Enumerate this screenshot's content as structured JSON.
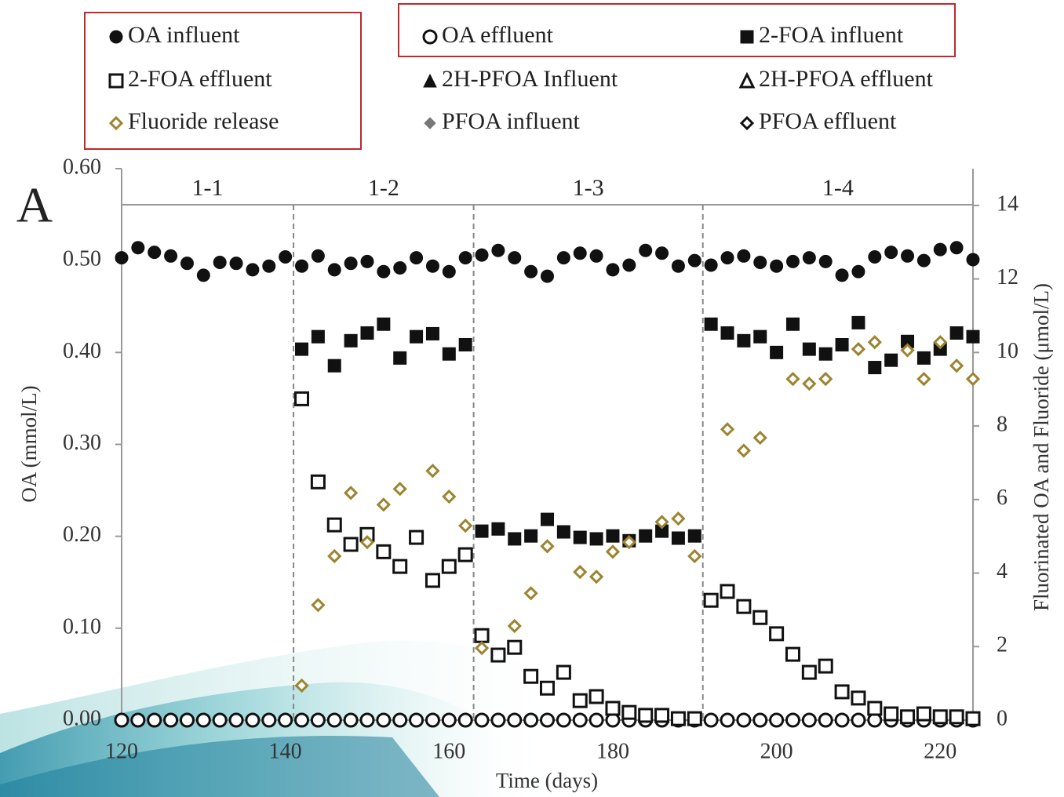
{
  "chart_data": {
    "type": "scatter",
    "panel_label": "A",
    "x_label": "Time (days)",
    "y_label": "OA (mmol/L)",
    "y2_label": "Fluorinated OA and Fluoride (μmol/L)",
    "xlim": [
      120,
      224
    ],
    "xticks": [
      120,
      140,
      160,
      180,
      200,
      220
    ],
    "ylim": [
      0,
      0.6
    ],
    "yticks": [
      {
        "value": 0,
        "label": "0.00"
      },
      {
        "value": 0.1,
        "label": "0.10"
      },
      {
        "value": 0.2,
        "label": "0.20"
      },
      {
        "value": 0.3,
        "label": "0.30"
      },
      {
        "value": 0.4,
        "label": "0.40"
      },
      {
        "value": 0.5,
        "label": "0.50"
      },
      {
        "value": 0.6,
        "label": "0.60"
      }
    ],
    "y2lim": [
      0,
      15
    ],
    "y2ticks": [
      0,
      2,
      4,
      6,
      8,
      10,
      12,
      14
    ],
    "phases": [
      "1-1",
      "1-2",
      "1-3",
      "1-4"
    ],
    "phase_boundaries": [
      141,
      163,
      191
    ],
    "series": [
      {
        "name": "OA influent",
        "color": "#111111",
        "marker": "circle",
        "filled": true,
        "axis": "y",
        "x": [
          120,
          122,
          124,
          126,
          128,
          130,
          132,
          134,
          136,
          138,
          140,
          142,
          144,
          146,
          148,
          150,
          152,
          154,
          156,
          158,
          160,
          162,
          164,
          166,
          168,
          170,
          172,
          174,
          176,
          178,
          180,
          182,
          184,
          186,
          188,
          190,
          192,
          194,
          196,
          198,
          200,
          202,
          204,
          206,
          208,
          210,
          212,
          214,
          216,
          218,
          220,
          222,
          224
        ],
        "values": [
          0.503,
          0.514,
          0.509,
          0.505,
          0.497,
          0.484,
          0.498,
          0.497,
          0.49,
          0.494,
          0.504,
          0.494,
          0.505,
          0.49,
          0.497,
          0.499,
          0.488,
          0.492,
          0.503,
          0.494,
          0.488,
          0.503,
          0.506,
          0.511,
          0.503,
          0.488,
          0.483,
          0.503,
          0.508,
          0.505,
          0.49,
          0.495,
          0.511,
          0.508,
          0.494,
          0.5,
          0.495,
          0.503,
          0.505,
          0.498,
          0.494,
          0.499,
          0.503,
          0.499,
          0.484,
          0.488,
          0.504,
          0.509,
          0.505,
          0.5,
          0.512,
          0.514,
          0.501
        ]
      },
      {
        "name": "OA effluent",
        "color": "#111111",
        "marker": "circle",
        "filled": false,
        "axis": "y",
        "x": [
          120,
          122,
          124,
          126,
          128,
          130,
          132,
          134,
          136,
          138,
          140,
          142,
          144,
          146,
          148,
          150,
          152,
          154,
          156,
          158,
          160,
          162,
          164,
          166,
          168,
          170,
          172,
          174,
          176,
          178,
          180,
          182,
          184,
          186,
          188,
          190,
          192,
          194,
          196,
          198,
          200,
          202,
          204,
          206,
          208,
          210,
          212,
          214,
          216,
          218,
          220,
          222,
          224
        ],
        "values": [
          0,
          0,
          0,
          0,
          0,
          0,
          0,
          0,
          0,
          0,
          0,
          0,
          0,
          0,
          0,
          0,
          0,
          0,
          0,
          0,
          0,
          0,
          0,
          0,
          0,
          0,
          0,
          0,
          0,
          0,
          0,
          0,
          0,
          0,
          0,
          0,
          0,
          0,
          0,
          0,
          0,
          0,
          0,
          0,
          0,
          0,
          0,
          0,
          0,
          0,
          0,
          0,
          0
        ]
      },
      {
        "name": "2-FOA influent",
        "color": "#111111",
        "marker": "square",
        "filled": true,
        "axis": "y2",
        "x": [
          142,
          144,
          146,
          148,
          150,
          152,
          154,
          156,
          158,
          160,
          162,
          164,
          166,
          168,
          170,
          172,
          174,
          176,
          178,
          180,
          182,
          184,
          186,
          188,
          190,
          192,
          194,
          196,
          198,
          200,
          202,
          204,
          206,
          208,
          210,
          212,
          214,
          216,
          218,
          220,
          222,
          224
        ],
        "values": [
          10.09,
          10.43,
          9.64,
          10.32,
          10.53,
          10.77,
          9.85,
          10.43,
          10.51,
          9.96,
          10.21,
          5.14,
          5.2,
          4.93,
          5.01,
          5.46,
          5.12,
          4.97,
          4.93,
          5.01,
          4.88,
          5.01,
          5.14,
          4.95,
          5.01,
          10.77,
          10.53,
          10.32,
          10.43,
          10.0,
          10.77,
          10.09,
          9.96,
          10.21,
          10.81,
          9.59,
          9.79,
          10.3,
          9.85,
          10.09,
          10.53,
          10.43
        ]
      },
      {
        "name": "2-FOA effluent",
        "color": "#111111",
        "marker": "square",
        "filled": false,
        "axis": "y2",
        "x": [
          142,
          144,
          146,
          148,
          150,
          152,
          154,
          156,
          158,
          160,
          162,
          164,
          166,
          168,
          170,
          172,
          174,
          176,
          178,
          180,
          182,
          184,
          186,
          188,
          190,
          192,
          194,
          196,
          198,
          200,
          202,
          204,
          206,
          208,
          210,
          212,
          214,
          216,
          218,
          220,
          222,
          224
        ],
        "values": [
          8.74,
          6.48,
          5.31,
          4.78,
          5.05,
          4.58,
          4.18,
          4.97,
          3.8,
          4.18,
          4.5,
          2.3,
          1.77,
          1.98,
          1.19,
          0.87,
          1.3,
          0.53,
          0.64,
          0.32,
          0.21,
          0.13,
          0.13,
          0.04,
          0.04,
          3.26,
          3.5,
          3.09,
          2.79,
          2.35,
          1.79,
          1.3,
          1.47,
          0.77,
          0.6,
          0.32,
          0.17,
          0.09,
          0.17,
          0.09,
          0.09,
          0.04
        ]
      },
      {
        "name": "2H-PFOA Influent",
        "color": "#111111",
        "marker": "triangle",
        "filled": true,
        "axis": "y2",
        "x": [],
        "values": []
      },
      {
        "name": "2H-PFOA effluent",
        "color": "#111111",
        "marker": "triangle",
        "filled": false,
        "axis": "y2",
        "x": [],
        "values": []
      },
      {
        "name": "Fluoride release",
        "color": "#9c8430",
        "marker": "diamond",
        "filled": false,
        "axis": "y2",
        "x": [
          142,
          144,
          146,
          148,
          150,
          152,
          154,
          158,
          160,
          162,
          164,
          168,
          170,
          172,
          176,
          178,
          180,
          182,
          186,
          188,
          190,
          194,
          196,
          198,
          202,
          204,
          206,
          210,
          212,
          216,
          218,
          220,
          222,
          224
        ],
        "values": [
          0.94,
          3.13,
          4.46,
          6.18,
          4.84,
          5.86,
          6.29,
          6.78,
          6.08,
          5.29,
          1.96,
          2.56,
          3.45,
          4.73,
          4.03,
          3.9,
          4.58,
          4.84,
          5.39,
          5.48,
          4.46,
          7.91,
          7.33,
          7.68,
          9.28,
          9.15,
          9.28,
          10.09,
          10.28,
          10.06,
          9.28,
          10.28,
          9.64,
          9.28
        ]
      },
      {
        "name": "PFOA influent",
        "color": "#777777",
        "marker": "diamond",
        "filled": true,
        "axis": "y2",
        "x": [],
        "values": []
      },
      {
        "name": "PFOA effluent",
        "color": "#111111",
        "marker": "diamond",
        "filled": false,
        "axis": "y2",
        "x": [],
        "values": []
      }
    ]
  }
}
